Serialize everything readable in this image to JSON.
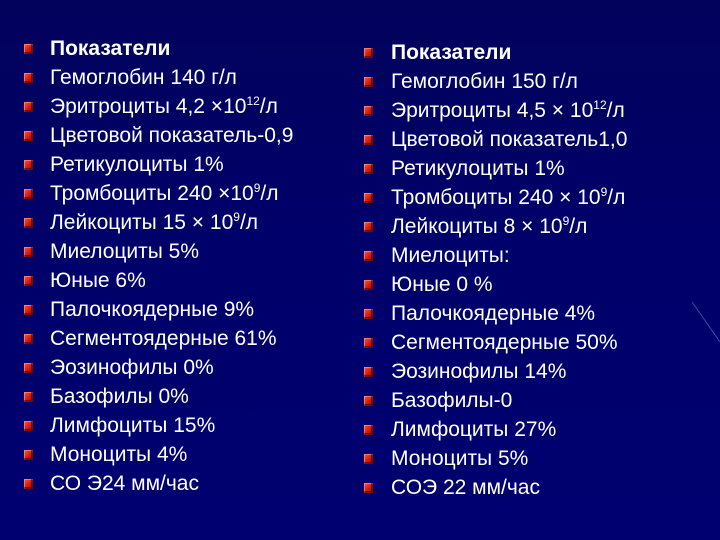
{
  "left_column": [
    {
      "text": "Показатели",
      "bold": true
    },
    {
      "text": "Гемоглобин 140 г/л"
    },
    {
      "text": "Эритроциты 4,2 ×10",
      "sup": "12",
      "after": "/л"
    },
    {
      "text": "Цветовой показатель-0,9"
    },
    {
      "text": "Ретикулоциты 1%"
    },
    {
      "text": "Тромбоциты 240 ×10",
      "sup": "9",
      "after": "/л"
    },
    {
      "text": "Лейкоциты 15 × 10",
      "sup": "9",
      "after": "/л"
    },
    {
      "text": "Миелоциты 5%"
    },
    {
      "text": "Юные 6%"
    },
    {
      "text": "Палочкоядерные 9%"
    },
    {
      "text": "Сегментоядерные 61%"
    },
    {
      "text": "Эозинофилы 0%"
    },
    {
      "text": "Базофилы 0%"
    },
    {
      "text": "Лимфоциты 15%"
    },
    {
      "text": "Моноциты 4%"
    },
    {
      "text": "СО Э24 мм/час"
    }
  ],
  "right_column": [
    {
      "text": "Показатели",
      "bold": true
    },
    {
      "text": "Гемоглобин 150 г/л"
    },
    {
      "text": "Эритроциты 4,5 × 10",
      "sup": "12",
      "after": "/л"
    },
    {
      "text": "Цветовой показатель1,0"
    },
    {
      "text": "Ретикулоциты 1%"
    },
    {
      "text": "Тромбоциты 240 × 10",
      "sup": "9",
      "after": "/л"
    },
    {
      "text": "Лейкоциты 8 × 10",
      "sup": "9",
      "after": "/л"
    },
    {
      "text": "Миелоциты:"
    },
    {
      "text": "Юные 0 %"
    },
    {
      "text": "Палочкоядерные 4%"
    },
    {
      "text": "Сегментоядерные 50%"
    },
    {
      "text": "Эозинофилы 14%"
    },
    {
      "text": "Базофилы-0"
    },
    {
      "text": "Лимфоциты 27%"
    },
    {
      "text": "Моноциты 5%"
    },
    {
      "text": "СОЭ 22 мм/час"
    }
  ],
  "colors": {
    "background": "#00006a",
    "text": "#ffffff",
    "bullet": "#d41a0a"
  },
  "icons": {
    "bullet": "square-bullet-icon"
  }
}
